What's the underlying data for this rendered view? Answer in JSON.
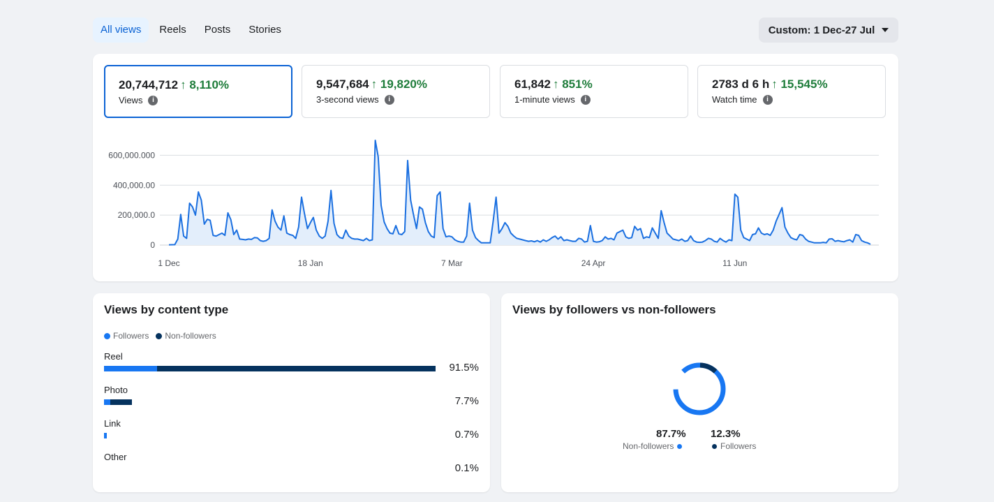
{
  "tabs": [
    {
      "label": "All views",
      "active": true
    },
    {
      "label": "Reels",
      "active": false
    },
    {
      "label": "Posts",
      "active": false
    },
    {
      "label": "Stories",
      "active": false
    }
  ],
  "date_range": {
    "label": "Custom: 1 Dec-27 Jul",
    "icon": "caret-down-icon"
  },
  "metrics": [
    {
      "value": "20,744,712",
      "change": "↑ 8,110%",
      "label": "Views",
      "active": true
    },
    {
      "value": "9,547,684",
      "change": "↑ 19,820%",
      "label": "3-second views",
      "active": false
    },
    {
      "value": "61,842",
      "change": "↑ 851%",
      "label": "1-minute views",
      "active": false
    },
    {
      "value": "2783 d 6 h",
      "change": "↑ 15,545%",
      "label": "Watch time",
      "active": false
    }
  ],
  "colors": {
    "accent": "#0a62d4",
    "positive": "#1e7c3a",
    "line": "#1a6fe0",
    "fill": "#e3eefb",
    "followers": "#1877f2",
    "non_followers": "#05325e"
  },
  "chart_data": {
    "type": "area",
    "y_ticks": [
      "0",
      "200,000.0",
      "400,000.00",
      "600,000.000"
    ],
    "ylim": [
      0,
      700000
    ],
    "x_ticks": [
      {
        "label": "1 Dec",
        "index": 0
      },
      {
        "label": "18 Jan",
        "index": 48
      },
      {
        "label": "7 Mar",
        "index": 96
      },
      {
        "label": "24 Apr",
        "index": 144
      },
      {
        "label": "11 Jun",
        "index": 192
      }
    ],
    "n_points": 239,
    "grid": true,
    "keypoints": [
      [
        0,
        2000
      ],
      [
        2,
        3000
      ],
      [
        3,
        40000
      ],
      [
        4,
        205000
      ],
      [
        5,
        60000
      ],
      [
        6,
        45000
      ],
      [
        7,
        280000
      ],
      [
        8,
        255000
      ],
      [
        9,
        200000
      ],
      [
        10,
        355000
      ],
      [
        11,
        300000
      ],
      [
        12,
        140000
      ],
      [
        13,
        172000
      ],
      [
        14,
        165000
      ],
      [
        15,
        65000
      ],
      [
        16,
        60000
      ],
      [
        17,
        70000
      ],
      [
        18,
        80000
      ],
      [
        19,
        65000
      ],
      [
        20,
        215000
      ],
      [
        21,
        170000
      ],
      [
        22,
        70000
      ],
      [
        23,
        100000
      ],
      [
        24,
        40000
      ],
      [
        25,
        38000
      ],
      [
        26,
        35000
      ],
      [
        27,
        40000
      ],
      [
        28,
        38000
      ],
      [
        29,
        50000
      ],
      [
        30,
        48000
      ],
      [
        31,
        30000
      ],
      [
        32,
        25000
      ],
      [
        33,
        30000
      ],
      [
        34,
        45000
      ],
      [
        35,
        235000
      ],
      [
        36,
        160000
      ],
      [
        37,
        120000
      ],
      [
        38,
        100000
      ],
      [
        39,
        195000
      ],
      [
        40,
        80000
      ],
      [
        41,
        70000
      ],
      [
        42,
        65000
      ],
      [
        43,
        45000
      ],
      [
        44,
        120000
      ],
      [
        45,
        320000
      ],
      [
        46,
        210000
      ],
      [
        47,
        110000
      ],
      [
        48,
        150000
      ],
      [
        49,
        185000
      ],
      [
        50,
        100000
      ],
      [
        51,
        60000
      ],
      [
        52,
        45000
      ],
      [
        53,
        60000
      ],
      [
        54,
        160000
      ],
      [
        55,
        365000
      ],
      [
        56,
        145000
      ],
      [
        57,
        70000
      ],
      [
        58,
        50000
      ],
      [
        59,
        45000
      ],
      [
        60,
        100000
      ],
      [
        61,
        60000
      ],
      [
        62,
        45000
      ],
      [
        63,
        40000
      ],
      [
        64,
        40000
      ],
      [
        65,
        35000
      ],
      [
        66,
        30000
      ],
      [
        67,
        45000
      ],
      [
        68,
        30000
      ],
      [
        69,
        35000
      ],
      [
        70,
        700000
      ],
      [
        71,
        590000
      ],
      [
        72,
        265000
      ],
      [
        73,
        155000
      ],
      [
        74,
        110000
      ],
      [
        75,
        80000
      ],
      [
        76,
        75000
      ],
      [
        77,
        130000
      ],
      [
        78,
        75000
      ],
      [
        79,
        70000
      ],
      [
        80,
        90000
      ],
      [
        81,
        565000
      ],
      [
        82,
        300000
      ],
      [
        83,
        200000
      ],
      [
        84,
        110000
      ],
      [
        85,
        255000
      ],
      [
        86,
        240000
      ],
      [
        87,
        150000
      ],
      [
        88,
        90000
      ],
      [
        89,
        60000
      ],
      [
        90,
        50000
      ],
      [
        91,
        330000
      ],
      [
        92,
        355000
      ],
      [
        93,
        110000
      ],
      [
        94,
        55000
      ],
      [
        95,
        60000
      ],
      [
        96,
        55000
      ],
      [
        97,
        35000
      ],
      [
        98,
        25000
      ],
      [
        99,
        20000
      ],
      [
        100,
        20000
      ],
      [
        101,
        60000
      ],
      [
        102,
        280000
      ],
      [
        103,
        100000
      ],
      [
        104,
        50000
      ],
      [
        105,
        30000
      ],
      [
        106,
        15000
      ],
      [
        107,
        15000
      ],
      [
        108,
        15000
      ],
      [
        109,
        15000
      ],
      [
        110,
        160000
      ],
      [
        111,
        320000
      ],
      [
        112,
        80000
      ],
      [
        113,
        110000
      ],
      [
        114,
        150000
      ],
      [
        115,
        125000
      ],
      [
        116,
        80000
      ],
      [
        117,
        60000
      ],
      [
        118,
        45000
      ],
      [
        119,
        40000
      ],
      [
        120,
        35000
      ],
      [
        121,
        30000
      ],
      [
        122,
        25000
      ],
      [
        123,
        28000
      ],
      [
        124,
        22000
      ],
      [
        125,
        30000
      ],
      [
        126,
        20000
      ],
      [
        127,
        35000
      ],
      [
        128,
        25000
      ],
      [
        129,
        35000
      ],
      [
        130,
        50000
      ],
      [
        131,
        60000
      ],
      [
        132,
        40000
      ],
      [
        133,
        55000
      ],
      [
        134,
        30000
      ],
      [
        135,
        35000
      ],
      [
        136,
        30000
      ],
      [
        137,
        25000
      ],
      [
        138,
        25000
      ],
      [
        139,
        45000
      ],
      [
        140,
        40000
      ],
      [
        141,
        20000
      ],
      [
        142,
        25000
      ],
      [
        143,
        130000
      ],
      [
        144,
        25000
      ],
      [
        145,
        20000
      ],
      [
        146,
        22000
      ],
      [
        147,
        30000
      ],
      [
        148,
        55000
      ],
      [
        149,
        40000
      ],
      [
        150,
        45000
      ],
      [
        151,
        35000
      ],
      [
        152,
        80000
      ],
      [
        153,
        90000
      ],
      [
        154,
        100000
      ],
      [
        155,
        55000
      ],
      [
        156,
        45000
      ],
      [
        157,
        50000
      ],
      [
        158,
        125000
      ],
      [
        159,
        100000
      ],
      [
        160,
        110000
      ],
      [
        161,
        45000
      ],
      [
        162,
        55000
      ],
      [
        163,
        50000
      ],
      [
        164,
        115000
      ],
      [
        165,
        80000
      ],
      [
        166,
        45000
      ],
      [
        167,
        230000
      ],
      [
        168,
        150000
      ],
      [
        169,
        80000
      ],
      [
        170,
        60000
      ],
      [
        171,
        40000
      ],
      [
        172,
        35000
      ],
      [
        173,
        30000
      ],
      [
        174,
        40000
      ],
      [
        175,
        25000
      ],
      [
        176,
        30000
      ],
      [
        177,
        60000
      ],
      [
        178,
        30000
      ],
      [
        179,
        20000
      ],
      [
        180,
        18000
      ],
      [
        181,
        20000
      ],
      [
        182,
        30000
      ],
      [
        183,
        45000
      ],
      [
        184,
        40000
      ],
      [
        185,
        25000
      ],
      [
        186,
        20000
      ],
      [
        187,
        45000
      ],
      [
        188,
        30000
      ],
      [
        189,
        20000
      ],
      [
        190,
        35000
      ],
      [
        191,
        30000
      ],
      [
        192,
        340000
      ],
      [
        193,
        320000
      ],
      [
        194,
        100000
      ],
      [
        195,
        50000
      ],
      [
        196,
        40000
      ],
      [
        197,
        30000
      ],
      [
        198,
        70000
      ],
      [
        199,
        75000
      ],
      [
        200,
        115000
      ],
      [
        201,
        80000
      ],
      [
        202,
        70000
      ],
      [
        203,
        75000
      ],
      [
        204,
        65000
      ],
      [
        205,
        100000
      ],
      [
        206,
        160000
      ],
      [
        207,
        205000
      ],
      [
        208,
        250000
      ],
      [
        209,
        120000
      ],
      [
        210,
        80000
      ],
      [
        211,
        50000
      ],
      [
        212,
        40000
      ],
      [
        213,
        35000
      ],
      [
        214,
        70000
      ],
      [
        215,
        65000
      ],
      [
        216,
        40000
      ],
      [
        217,
        25000
      ],
      [
        218,
        20000
      ],
      [
        219,
        15000
      ],
      [
        220,
        15000
      ],
      [
        221,
        15000
      ],
      [
        222,
        18000
      ],
      [
        223,
        15000
      ],
      [
        224,
        40000
      ],
      [
        225,
        42000
      ],
      [
        226,
        25000
      ],
      [
        227,
        30000
      ],
      [
        228,
        25000
      ],
      [
        229,
        22000
      ],
      [
        230,
        30000
      ],
      [
        231,
        35000
      ],
      [
        232,
        20000
      ],
      [
        233,
        70000
      ],
      [
        234,
        65000
      ],
      [
        235,
        30000
      ],
      [
        236,
        20000
      ],
      [
        237,
        15000
      ],
      [
        238,
        5000
      ]
    ]
  },
  "content_type": {
    "title": "Views by content type",
    "legend": [
      {
        "label": "Followers"
      },
      {
        "label": "Non-followers"
      }
    ],
    "rows": [
      {
        "label": "Reel",
        "pct": "91.5%",
        "total": 91.5,
        "followers_share": 0.16
      },
      {
        "label": "Photo",
        "pct": "7.7%",
        "total": 7.7,
        "followers_share": 0.22
      },
      {
        "label": "Link",
        "pct": "0.7%",
        "total": 0.7,
        "followers_share": 0.5
      },
      {
        "label": "Other",
        "pct": "0.1%",
        "total": 0.1,
        "followers_share": 0.5
      }
    ]
  },
  "followers_split": {
    "title": "Views by followers vs non-followers",
    "non_followers": {
      "pct": "87.7%",
      "label": "Non-followers",
      "value": 87.7
    },
    "followers": {
      "pct": "12.3%",
      "label": "Followers",
      "value": 12.3
    }
  }
}
